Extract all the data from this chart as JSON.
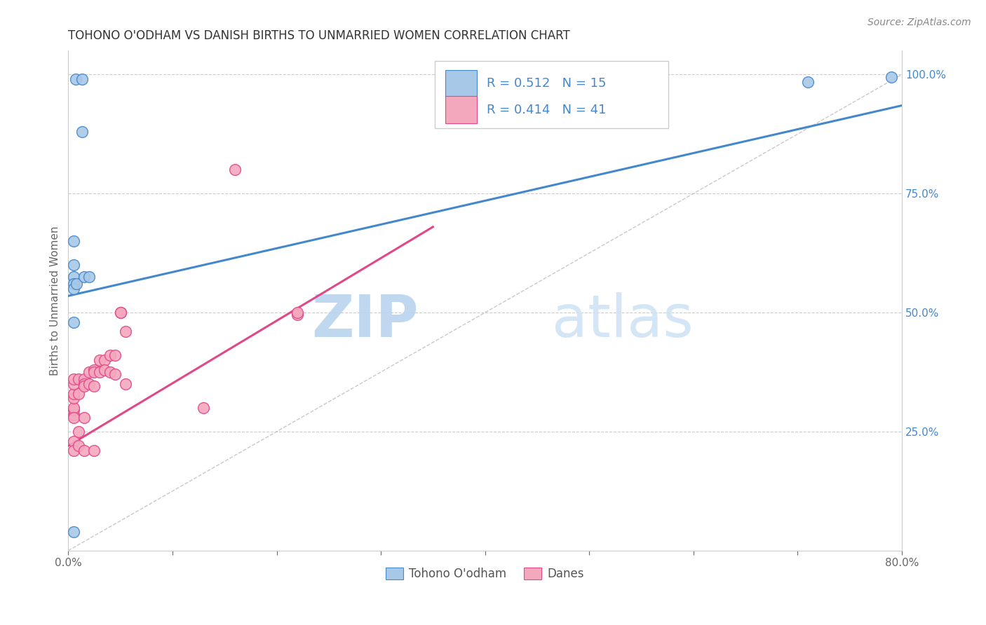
{
  "title": "TOHONO O'ODHAM VS DANISH BIRTHS TO UNMARRIED WOMEN CORRELATION CHART",
  "source": "Source: ZipAtlas.com",
  "ylabel": "Births to Unmarried Women",
  "x_min": 0.0,
  "x_max": 0.8,
  "y_min": 0.0,
  "y_max": 1.05,
  "x_ticks": [
    0.0,
    0.1,
    0.2,
    0.3,
    0.4,
    0.5,
    0.6,
    0.7,
    0.8
  ],
  "x_tick_labels": [
    "0.0%",
    "",
    "",
    "",
    "",
    "",
    "",
    "",
    "80.0%"
  ],
  "y_ticks": [
    0.25,
    0.5,
    0.75,
    1.0
  ],
  "y_tick_labels": [
    "25.0%",
    "50.0%",
    "75.0%",
    "100.0%"
  ],
  "watermark_zip": "ZIP",
  "watermark_atlas": "atlas",
  "color_blue": "#a8c8e8",
  "color_pink": "#f4a8be",
  "color_blue_line": "#4488cc",
  "color_pink_line": "#e04888",
  "color_blue_text": "#4488cc",
  "color_pink_text": "#e04888",
  "color_blue_label": "#3366bb",
  "tohono_x": [
    0.007,
    0.013,
    0.013,
    0.005,
    0.005,
    0.005,
    0.005,
    0.005,
    0.008,
    0.015,
    0.02,
    0.005,
    0.005,
    0.71,
    0.79
  ],
  "tohono_y": [
    0.99,
    0.99,
    0.88,
    0.65,
    0.6,
    0.575,
    0.56,
    0.55,
    0.56,
    0.575,
    0.575,
    0.48,
    0.04,
    0.985,
    0.995
  ],
  "danes_x": [
    0.005,
    0.005,
    0.005,
    0.005,
    0.005,
    0.005,
    0.005,
    0.005,
    0.005,
    0.005,
    0.01,
    0.01,
    0.01,
    0.01,
    0.015,
    0.015,
    0.015,
    0.015,
    0.015,
    0.02,
    0.02,
    0.025,
    0.025,
    0.025,
    0.025,
    0.03,
    0.03,
    0.035,
    0.035,
    0.04,
    0.04,
    0.045,
    0.045,
    0.05,
    0.05,
    0.055,
    0.055,
    0.13,
    0.16,
    0.22,
    0.22
  ],
  "danes_y": [
    0.285,
    0.295,
    0.3,
    0.32,
    0.33,
    0.35,
    0.36,
    0.28,
    0.23,
    0.21,
    0.36,
    0.33,
    0.25,
    0.22,
    0.36,
    0.35,
    0.345,
    0.28,
    0.21,
    0.375,
    0.35,
    0.38,
    0.375,
    0.345,
    0.21,
    0.375,
    0.4,
    0.4,
    0.38,
    0.41,
    0.375,
    0.37,
    0.41,
    0.5,
    0.5,
    0.46,
    0.35,
    0.3,
    0.8,
    0.495,
    0.5
  ],
  "blue_line_x": [
    0.0,
    0.8
  ],
  "blue_line_y": [
    0.535,
    0.935
  ],
  "pink_line_x": [
    0.0,
    0.35
  ],
  "pink_line_y": [
    0.22,
    0.68
  ],
  "diag_line_x": [
    0.0,
    0.8
  ],
  "diag_line_y": [
    0.0,
    1.0
  ],
  "background_color": "#ffffff",
  "grid_color": "#cccccc"
}
